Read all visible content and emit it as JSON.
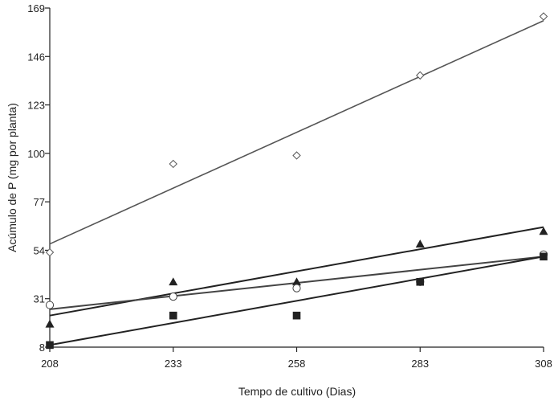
{
  "chart_data": {
    "type": "scatter",
    "title": "",
    "xlabel": "Tempo de cultivo (Dias)",
    "ylabel": "Acúmulo de P (mg por planta)",
    "xlim": [
      208,
      308
    ],
    "ylim": [
      8,
      169
    ],
    "xticks": [
      208,
      233,
      258,
      283,
      308
    ],
    "yticks": [
      8,
      31,
      54,
      77,
      100,
      123,
      146,
      169
    ],
    "x": [
      208,
      233,
      258,
      283,
      308
    ],
    "grid": false,
    "legend": "none",
    "series": [
      {
        "marker": "diamond-open",
        "color": "#555555",
        "values": [
          53,
          95,
          99,
          137,
          165
        ],
        "trendline": [
          57,
          83,
          110,
          137,
          163
        ]
      },
      {
        "marker": "triangle-filled",
        "color": "#222222",
        "values": [
          19,
          39,
          39,
          57,
          63
        ],
        "trendline": [
          23,
          34,
          44,
          55,
          65
        ]
      },
      {
        "marker": "circle-open",
        "color": "#444444",
        "values": [
          28,
          32,
          36,
          39,
          52
        ],
        "trendline": [
          26,
          33,
          39,
          45,
          51
        ]
      },
      {
        "marker": "square-filled",
        "color": "#222222",
        "values": [
          9,
          23,
          23,
          39,
          51
        ],
        "trendline": [
          9,
          19,
          30,
          40,
          51
        ]
      }
    ]
  }
}
